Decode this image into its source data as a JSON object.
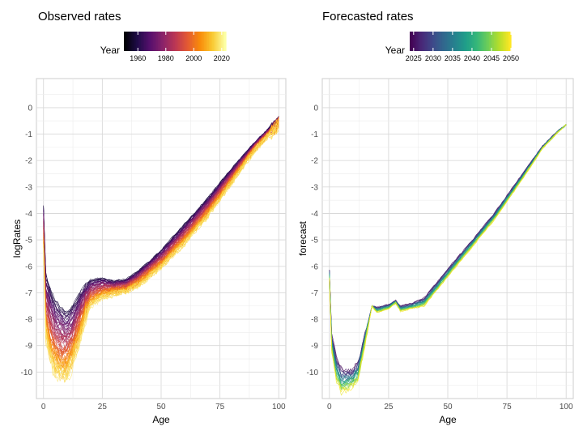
{
  "chart_data": [
    {
      "type": "line",
      "title": "Observed rates",
      "xlabel": "Age",
      "ylabel": "logRates",
      "xlim": [
        -3,
        103
      ],
      "ylim": [
        -11,
        1.1
      ],
      "x_ticks": [
        0,
        25,
        50,
        75,
        100
      ],
      "x_tick_labels": [
        "0",
        "25",
        "50",
        "75",
        "100"
      ],
      "y_ticks": [
        0,
        -1,
        -2,
        -3,
        -4,
        -5,
        -6,
        -7,
        -8,
        -9,
        -10
      ],
      "y_tick_labels": [
        "0",
        "-1",
        "-2",
        "-3",
        "-4",
        "-5",
        "-6",
        "-7",
        "-8",
        "-9",
        "-10"
      ],
      "grid": true,
      "colormap": "inferno",
      "legend": {
        "title": "Year",
        "position": "top",
        "range": [
          1950,
          2023
        ],
        "ticks": [
          1960,
          1980,
          2000,
          2020
        ],
        "tick_labels": [
          "1960",
          "1980",
          "2000",
          "2020"
        ]
      },
      "series_years": {
        "from": 1950,
        "to": 2023
      },
      "age_range": [
        0,
        100
      ],
      "profiles": {
        "ages": [
          0,
          1,
          3,
          5,
          8,
          10,
          12,
          15,
          18,
          20,
          25,
          30,
          35,
          40,
          50,
          60,
          70,
          80,
          90,
          100
        ],
        "year_1950": [
          -3.7,
          -6.3,
          -6.9,
          -7.3,
          -7.6,
          -7.7,
          -7.55,
          -7.1,
          -6.7,
          -6.5,
          -6.45,
          -6.55,
          -6.5,
          -6.2,
          -5.4,
          -4.4,
          -3.4,
          -2.3,
          -1.3,
          -0.4
        ],
        "year_2023": [
          -5.4,
          -8.8,
          -9.6,
          -10.0,
          -10.3,
          -10.2,
          -9.8,
          -8.9,
          -7.9,
          -7.5,
          -7.2,
          -7.05,
          -7.0,
          -6.75,
          -6.05,
          -5.15,
          -4.1,
          -2.85,
          -1.6,
          -0.65
        ]
      }
    },
    {
      "type": "line",
      "title": "Forecasted rates",
      "xlabel": "Age",
      "ylabel": "forecast",
      "xlim": [
        -3,
        103
      ],
      "ylim": [
        -11,
        1.1
      ],
      "x_ticks": [
        0,
        25,
        50,
        75,
        100
      ],
      "x_tick_labels": [
        "0",
        "25",
        "50",
        "75",
        "100"
      ],
      "y_ticks": [
        0,
        -1,
        -2,
        -3,
        -4,
        -5,
        -6,
        -7,
        -8,
        -9,
        -10
      ],
      "y_tick_labels": [
        "0",
        "-1",
        "-2",
        "-3",
        "-4",
        "-5",
        "-6",
        "-7",
        "-8",
        "-9",
        "-10"
      ],
      "grid": true,
      "colormap": "viridis",
      "legend": {
        "title": "Year",
        "position": "top",
        "range": [
          2024,
          2050
        ],
        "ticks": [
          2025,
          2030,
          2035,
          2040,
          2045,
          2050
        ],
        "tick_labels": [
          "2025",
          "2030",
          "2035",
          "2040",
          "2045",
          "2050"
        ]
      },
      "series_years": {
        "from": 2024,
        "to": 2050
      },
      "age_range": [
        0,
        100
      ],
      "profiles": {
        "ages": [
          0,
          1,
          3,
          5,
          8,
          10,
          12,
          15,
          18,
          20,
          25,
          28,
          30,
          35,
          40,
          50,
          60,
          70,
          80,
          90,
          97,
          100
        ],
        "year_2024": [
          -6.1,
          -8.6,
          -9.5,
          -9.9,
          -10.0,
          -9.9,
          -9.7,
          -8.6,
          -7.5,
          -7.55,
          -7.45,
          -7.3,
          -7.5,
          -7.4,
          -7.2,
          -6.1,
          -5.05,
          -3.95,
          -2.7,
          -1.45,
          -0.85,
          -0.65
        ],
        "year_2050": [
          -6.5,
          -9.2,
          -10.3,
          -10.8,
          -10.6,
          -10.5,
          -10.3,
          -9.0,
          -7.5,
          -7.75,
          -7.6,
          -7.4,
          -7.7,
          -7.6,
          -7.5,
          -6.4,
          -5.3,
          -4.2,
          -2.9,
          -1.55,
          -0.88,
          -0.65
        ]
      }
    }
  ]
}
